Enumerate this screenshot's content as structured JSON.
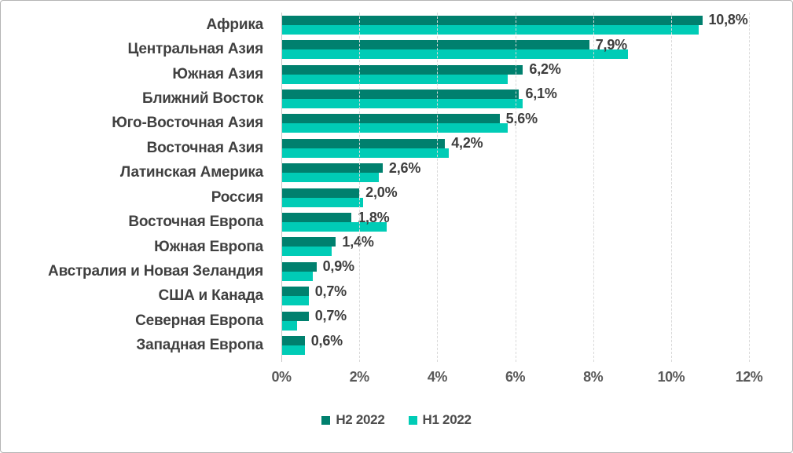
{
  "chart_data": {
    "type": "bar",
    "orientation": "horizontal",
    "title": "",
    "xlabel": "",
    "ylabel": "",
    "xlim": [
      0,
      12
    ],
    "grid": "vertical-dashed",
    "legend_position": "bottom-center",
    "categories": [
      "Африка",
      "Центральная Азия",
      "Южная Азия",
      "Ближний Восток",
      "Юго-Восточная Азия",
      "Восточная Азия",
      "Латинская Америка",
      "Россия",
      "Восточная Европа",
      "Южная Европа",
      "Австралия и Новая Зеландия",
      "США и Канада",
      "Северная Европа",
      "Западная Европа"
    ],
    "series": [
      {
        "name": "H2 2022",
        "color": "#00806E",
        "values": [
          10.8,
          7.9,
          6.2,
          6.1,
          5.6,
          4.2,
          2.6,
          2.0,
          1.8,
          1.4,
          0.9,
          0.7,
          0.7,
          0.6
        ],
        "data_labels": [
          "10,8%",
          "7,9%",
          "6,2%",
          "6,1%",
          "5,6%",
          "4,2%",
          "2,6%",
          "2,0%",
          "1,8%",
          "1,4%",
          "0,9%",
          "0,7%",
          "0,7%",
          "0,6%"
        ]
      },
      {
        "name": "H1 2022",
        "color": "#00CCB6",
        "values": [
          10.7,
          8.9,
          5.8,
          6.2,
          5.8,
          4.3,
          2.5,
          2.1,
          2.7,
          1.3,
          0.8,
          0.7,
          0.4,
          0.6
        ]
      }
    ],
    "xticks": [
      {
        "value": 0,
        "label": "0%"
      },
      {
        "value": 2,
        "label": "2%"
      },
      {
        "value": 4,
        "label": "4%"
      },
      {
        "value": 6,
        "label": "6%"
      },
      {
        "value": 8,
        "label": "8%"
      },
      {
        "value": 10,
        "label": "10%"
      },
      {
        "value": 12,
        "label": "12%"
      }
    ],
    "style": {
      "gridline_color": "#d9d9d9",
      "axis_color": "#c6c6c6",
      "category_label_color": "#404040",
      "data_label_color": "#3d3d3d",
      "tick_label_color": "#595959",
      "background": "#ffffff",
      "border_color": "#b5b5b5"
    }
  }
}
